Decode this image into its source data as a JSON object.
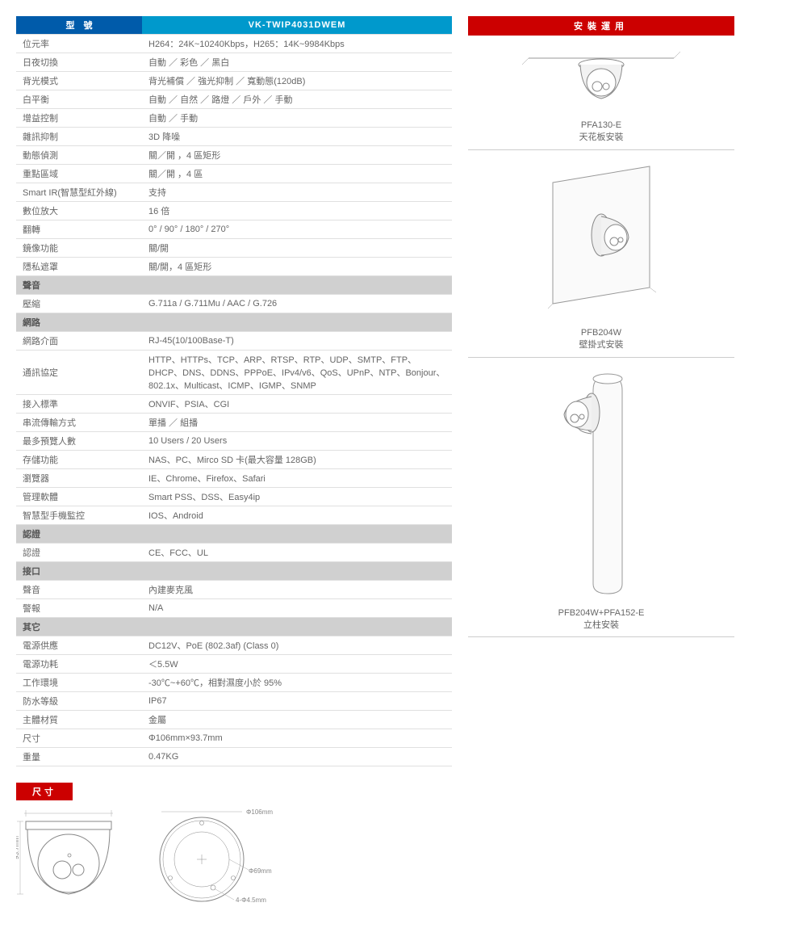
{
  "colors": {
    "blue": "#005baa",
    "cyan": "#0099cc",
    "red": "#c00",
    "section_bg": "#d0d0d0",
    "text": "#666666",
    "border": "#e0e0e0"
  },
  "headers": {
    "model_label": "型　號",
    "model_value": "VK-TWIP4031DWEM",
    "install_title": "安裝運用",
    "dimensions_title": "尺寸"
  },
  "spec_rows": [
    {
      "type": "row",
      "label": "位元率",
      "value": "H264：24K~10240Kbps，H265：14K~9984Kbps"
    },
    {
      "type": "row",
      "label": "日夜切換",
      "value": "自動 ／ 彩色 ／ 黑白"
    },
    {
      "type": "row",
      "label": "背光模式",
      "value": "背光補償 ／ 強光抑制 ／ 寬動態(120dB)"
    },
    {
      "type": "row",
      "label": "白平衡",
      "value": "自動 ／ 自然 ／ 路燈 ／ 戶外 ／ 手動"
    },
    {
      "type": "row",
      "label": "增益控制",
      "value": "自動 ／ 手動"
    },
    {
      "type": "row",
      "label": "雜訊抑制",
      "value": "3D 降噪"
    },
    {
      "type": "row",
      "label": "動態偵測",
      "value": "關／開 ，4 區矩形"
    },
    {
      "type": "row",
      "label": "重點區域",
      "value": "關／開 ，4 區"
    },
    {
      "type": "row",
      "label": "Smart IR(智慧型紅外線)",
      "value": "支持"
    },
    {
      "type": "row",
      "label": "數位放大",
      "value": "16 倍"
    },
    {
      "type": "row",
      "label": "翻轉",
      "value": "0° / 90° / 180° / 270°"
    },
    {
      "type": "row",
      "label": "鏡像功能",
      "value": "關/開"
    },
    {
      "type": "row",
      "label": "隱私遮罩",
      "value": "關/開，4 區矩形"
    },
    {
      "type": "section",
      "label": "聲音"
    },
    {
      "type": "row",
      "label": "壓縮",
      "value": "G.711a / G.711Mu / AAC / G.726"
    },
    {
      "type": "section",
      "label": "網路"
    },
    {
      "type": "row",
      "label": "網路介面",
      "value": "RJ-45(10/100Base-T)"
    },
    {
      "type": "row",
      "label": "通訊協定",
      "value": "HTTP、HTTPs、TCP、ARP、RTSP、RTP、UDP、SMTP、FTP、DHCP、DNS、DDNS、PPPoE、IPv4/v6、QoS、UPnP、NTP、Bonjour、802.1x、Multicast、ICMP、IGMP、SNMP"
    },
    {
      "type": "row",
      "label": "接入標準",
      "value": "ONVIF、PSIA、CGI"
    },
    {
      "type": "row",
      "label": "串流傳輸方式",
      "value": "單播 ／ 組播"
    },
    {
      "type": "row",
      "label": "最多預覽人數",
      "value": "10 Users / 20 Users"
    },
    {
      "type": "row",
      "label": "存儲功能",
      "value": "NAS、PC、Mirco SD 卡(最大容量 128GB)"
    },
    {
      "type": "row",
      "label": "瀏覽器",
      "value": "IE、Chrome、Firefox、Safari"
    },
    {
      "type": "row",
      "label": "管理軟體",
      "value": "Smart PSS、DSS、Easy4ip"
    },
    {
      "type": "row",
      "label": "智慧型手機監控",
      "value": "IOS、Android"
    },
    {
      "type": "section",
      "label": "認證"
    },
    {
      "type": "row",
      "label": "認證",
      "value": "CE、FCC、UL"
    },
    {
      "type": "section",
      "label": "接口"
    },
    {
      "type": "row",
      "label": "聲音",
      "value": "內建麥克風"
    },
    {
      "type": "row",
      "label": "警報",
      "value": "N/A"
    },
    {
      "type": "section",
      "label": "其它"
    },
    {
      "type": "row",
      "label": "電源供應",
      "value": "DC12V、PoE (802.3af) (Class 0)"
    },
    {
      "type": "row",
      "label": "電源功耗",
      "value": "＜5.5W"
    },
    {
      "type": "row",
      "label": "工作環境",
      "value": "-30℃~+60℃，相對濕度小於 95%"
    },
    {
      "type": "row",
      "label": "防水等級",
      "value": "IP67"
    },
    {
      "type": "row",
      "label": "主體材質",
      "value": "金屬"
    },
    {
      "type": "row",
      "label": "尺寸",
      "value": "Φ106mm×93.7mm"
    },
    {
      "type": "row",
      "label": "重量",
      "value": "0.47KG"
    }
  ],
  "installations": [
    {
      "model": "PFA130-E",
      "desc": "天花板安裝"
    },
    {
      "model": "PFB204W",
      "desc": "壁掛式安裝"
    },
    {
      "model": "PFB204W+PFA152-E",
      "desc": "立柱安裝"
    }
  ],
  "dimensions": {
    "diameter_label": "Φ106mm",
    "inner_label": "Φ69mm",
    "hole_label": "4-Φ4.5mm",
    "height_label": "93.7mm"
  }
}
